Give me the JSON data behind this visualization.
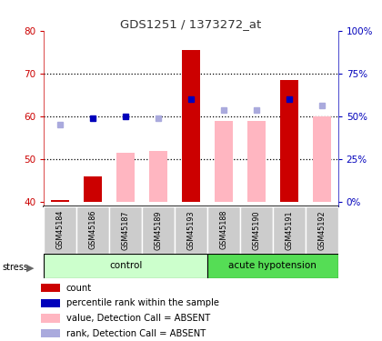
{
  "title": "GDS1251 / 1373272_at",
  "samples": [
    "GSM45184",
    "GSM45186",
    "GSM45187",
    "GSM45189",
    "GSM45193",
    "GSM45188",
    "GSM45190",
    "GSM45191",
    "GSM45192"
  ],
  "red_bar_values": [
    40.5,
    46.0,
    null,
    null,
    75.5,
    null,
    null,
    68.5,
    null
  ],
  "pink_bar_values": [
    null,
    null,
    51.5,
    52.0,
    null,
    59.0,
    59.0,
    null,
    60.0
  ],
  "blue_dot_values": [
    null,
    59.5,
    60.0,
    null,
    64.0,
    null,
    null,
    64.0,
    null
  ],
  "light_blue_dot_values": [
    58.0,
    null,
    null,
    59.5,
    null,
    61.5,
    61.5,
    null,
    62.5
  ],
  "ylim": [
    39,
    80
  ],
  "yticks": [
    40,
    50,
    60,
    70,
    80
  ],
  "bar_bottom": 40,
  "colors": {
    "red_bar": "#CC0000",
    "pink_bar": "#FFB6C1",
    "blue_dot": "#0000BB",
    "light_blue_dot": "#AAAADD",
    "title": "#333333",
    "left_axis": "#CC0000",
    "right_axis": "#0000BB",
    "group_control_bg": "#CCFFCC",
    "group_acute_bg": "#55DD55",
    "sample_bg": "#CCCCCC",
    "sample_divider": "#FFFFFF"
  },
  "ctrl_count": 5,
  "acute_count": 4,
  "legend_items": [
    {
      "color": "#CC0000",
      "label": "count"
    },
    {
      "color": "#0000BB",
      "label": "percentile rank within the sample"
    },
    {
      "color": "#FFB6C1",
      "label": "value, Detection Call = ABSENT"
    },
    {
      "color": "#AAAADD",
      "label": "rank, Detection Call = ABSENT"
    }
  ],
  "y2_positions": [
    40,
    50,
    60,
    70,
    80
  ],
  "y2_labels": [
    "0%",
    "25%",
    "50%",
    "75%",
    "100%"
  ]
}
